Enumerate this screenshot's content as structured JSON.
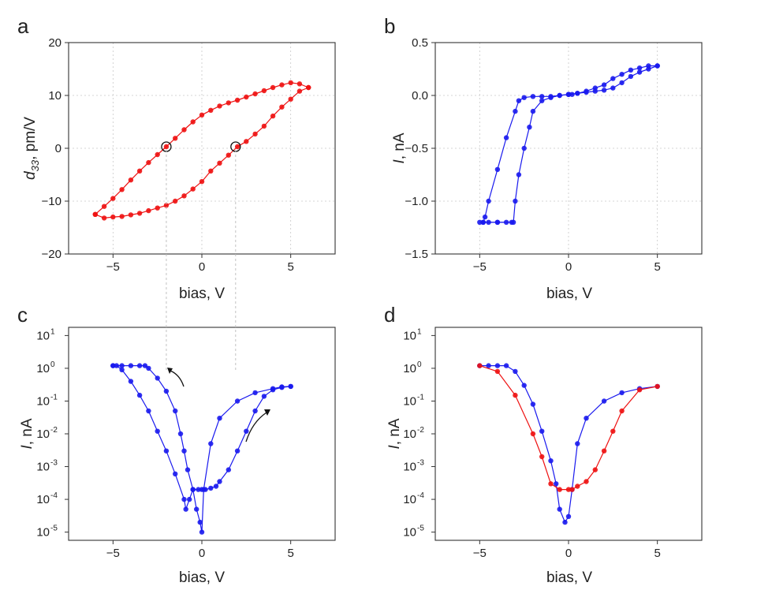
{
  "colors": {
    "red": "#ee1111",
    "blue": "#1a1aee",
    "frame": "#333333",
    "grid": "#c8c8c8",
    "dashed_guide": "#bbbbbb"
  },
  "chart_data": [
    {
      "panel": "a",
      "type": "line",
      "xlabel": "bias, V",
      "ylabel_main": "d",
      "ylabel_sub": "33",
      "ylabel_rest": ", pm/V",
      "xlim": [
        -7.5,
        7.5
      ],
      "ylim": [
        -20,
        20
      ],
      "xticks": [
        -5,
        0,
        5
      ],
      "yticks": [
        -20,
        -10,
        0,
        10,
        20
      ],
      "xtick_labels": [
        "−5",
        "0",
        "5"
      ],
      "ytick_labels": [
        "−20",
        "−10",
        "0",
        "10",
        "20"
      ],
      "grid": "dotted",
      "color": "#ee1111",
      "series": [
        {
          "x": [
            -6,
            -5.5,
            -5,
            -4.5,
            -4,
            -3.5,
            -3,
            -2.5,
            -2,
            -1.5,
            -1,
            -0.5,
            0,
            0.5,
            1,
            1.5,
            2,
            2.5,
            3,
            3.5,
            4,
            4.5,
            5,
            5.5,
            6
          ],
          "y": [
            -12.5,
            -11,
            -9.5,
            -7.8,
            -6,
            -4.3,
            -2.7,
            -1.2,
            0.3,
            1.9,
            3.5,
            5,
            6.3,
            7.2,
            8,
            8.6,
            9.1,
            9.7,
            10.3,
            10.9,
            11.5,
            12,
            12.4,
            12.2,
            11.5
          ]
        },
        {
          "x": [
            6,
            5.5,
            5,
            4.5,
            4,
            3.5,
            3,
            2.5,
            2,
            1.5,
            1,
            0.5,
            0,
            -0.5,
            -1,
            -1.5,
            -2,
            -2.5,
            -3,
            -3.5,
            -4,
            -4.5,
            -5,
            -5.5,
            -6
          ],
          "y": [
            11.5,
            10.8,
            9.3,
            7.8,
            6.1,
            4.2,
            2.7,
            1.3,
            0.3,
            -1.3,
            -2.8,
            -4.3,
            -6.3,
            -7.7,
            -9,
            -10,
            -10.8,
            -11.3,
            -11.8,
            -12.3,
            -12.6,
            -12.9,
            -13,
            -13.2,
            -12.5
          ]
        }
      ],
      "markers": [
        {
          "x": -2,
          "y": 0.3
        },
        {
          "x": 1.9,
          "y": 0.3
        }
      ]
    },
    {
      "panel": "b",
      "type": "line",
      "xlabel": "bias, V",
      "ylabel_main": "I",
      "ylabel_rest": ", nA",
      "xlim": [
        -7.5,
        7.5
      ],
      "ylim": [
        -1.5,
        0.5
      ],
      "xticks": [
        -5,
        0,
        5
      ],
      "yticks": [
        -1.5,
        -1.0,
        -0.5,
        0.0,
        0.5
      ],
      "xtick_labels": [
        "−5",
        "0",
        "5"
      ],
      "ytick_labels": [
        "−1.5",
        "−1.0",
        "−0.5",
        "0.0",
        "0.5"
      ],
      "grid": "dotted",
      "color": "#1a1aee",
      "series": [
        {
          "x": [
            0,
            0.5,
            1,
            1.5,
            2,
            2.5,
            3,
            3.5,
            4,
            4.5,
            5
          ],
          "y": [
            0.01,
            0.02,
            0.03,
            0.04,
            0.05,
            0.07,
            0.12,
            0.18,
            0.22,
            0.25,
            0.28
          ]
        },
        {
          "x": [
            5,
            4.5,
            4,
            3.5,
            3,
            2.5,
            2,
            1.5,
            1,
            0.5,
            0.2,
            0,
            -0.5,
            -1,
            -1.5,
            -2,
            -2.5,
            -2.8,
            -3,
            -3.5,
            -4,
            -4.5,
            -4.7,
            -4.8
          ],
          "y": [
            0.28,
            0.28,
            0.26,
            0.24,
            0.2,
            0.16,
            0.1,
            0.07,
            0.04,
            0.02,
            0.01,
            0.01,
            0.0,
            -0.01,
            -0.01,
            -0.01,
            -0.02,
            -0.05,
            -0.15,
            -0.4,
            -0.7,
            -1.0,
            -1.15,
            -1.2
          ]
        },
        {
          "x": [
            -4.8,
            -4.5,
            -4,
            -3.5,
            -3.2
          ],
          "y": [
            -1.2,
            -1.2,
            -1.2,
            -1.2,
            -1.2
          ]
        },
        {
          "x": [
            -5,
            -4,
            -3.1,
            -3,
            -2.8,
            -2.5,
            -2.2,
            -2,
            -1.5,
            -1,
            -0.5,
            0
          ],
          "y": [
            -1.2,
            -1.2,
            -1.2,
            -1.0,
            -0.75,
            -0.5,
            -0.3,
            -0.15,
            -0.05,
            -0.02,
            0.0,
            0.01
          ]
        }
      ]
    },
    {
      "panel": "c",
      "type": "line",
      "xlabel": "bias, V",
      "ylabel_main": "I",
      "ylabel_rest": ", nA",
      "yscale": "log",
      "xlim": [
        -7.5,
        7.5
      ],
      "ylim": [
        1e-05,
        10
      ],
      "xticks": [
        -5,
        0,
        5
      ],
      "xtick_labels": [
        "−5",
        "0",
        "5"
      ],
      "ytick_exponents": [
        -5,
        -4,
        -3,
        -2,
        -1,
        0,
        1
      ],
      "ytick_labels": [
        "10",
        "10",
        "10",
        "10",
        "10",
        "10",
        "10"
      ],
      "ytick_sups": [
        "-5",
        "-4",
        "-3",
        "-2",
        "-1",
        "0",
        "1"
      ],
      "grid": "none",
      "color": "#1a1aee",
      "series": [
        {
          "x": [
            -5,
            -4.5,
            -4,
            -3.5,
            -3.2,
            -3,
            -2.5,
            -2,
            -1.5,
            -1.2,
            -1,
            -0.8,
            -0.5,
            -0.3,
            -0.1,
            0,
            0.1,
            0.5,
            1,
            2,
            3,
            4,
            4.5,
            5
          ],
          "y": [
            1.2,
            1.2,
            1.2,
            1.2,
            1.2,
            1.0,
            0.5,
            0.2,
            0.05,
            0.01,
            0.003,
            0.0008,
            0.0002,
            5e-05,
            2e-05,
            1e-05,
            0.0002,
            0.005,
            0.03,
            0.1,
            0.18,
            0.24,
            0.27,
            0.28
          ]
        },
        {
          "x": [
            5,
            4.5,
            4,
            3.5,
            3,
            2.5,
            2,
            1.5,
            1,
            0.8,
            0.5,
            0.2,
            0,
            -0.2,
            -0.5,
            -0.7,
            -0.9,
            -1,
            -1.5,
            -2,
            -2.5,
            -3,
            -3.5,
            -4,
            -4.5,
            -4.8,
            -5
          ],
          "y": [
            0.28,
            0.26,
            0.22,
            0.14,
            0.05,
            0.012,
            0.003,
            0.0008,
            0.00035,
            0.00025,
            0.00022,
            0.0002,
            0.0002,
            0.0002,
            0.0002,
            0.0001,
            5e-05,
            0.0001,
            0.0006,
            0.003,
            0.012,
            0.05,
            0.15,
            0.4,
            0.9,
            1.2,
            1.2
          ]
        }
      ],
      "guide_lines_x": [
        -2,
        1.9
      ]
    },
    {
      "panel": "d",
      "type": "line",
      "xlabel": "bias, V",
      "ylabel_main": "I",
      "ylabel_rest": ", nA",
      "yscale": "log",
      "xlim": [
        -7.5,
        7.5
      ],
      "ylim": [
        1e-05,
        10
      ],
      "xticks": [
        -5,
        0,
        5
      ],
      "xtick_labels": [
        "−5",
        "0",
        "5"
      ],
      "ytick_exponents": [
        -5,
        -4,
        -3,
        -2,
        -1,
        0,
        1
      ],
      "ytick_labels": [
        "10",
        "10",
        "10",
        "10",
        "10",
        "10",
        "10"
      ],
      "ytick_sups": [
        "-5",
        "-4",
        "-3",
        "-2",
        "-1",
        "0",
        "1"
      ],
      "grid": "none",
      "colors": [
        "#1a1aee",
        "#ee1111"
      ],
      "series": [
        {
          "x": [
            -5,
            -4.5,
            -4,
            -3.5,
            -3,
            -2.5,
            -2,
            -1.5,
            -1,
            -0.7,
            -0.5,
            -0.2,
            0,
            0.2,
            0.5,
            1,
            2,
            3,
            4,
            5
          ],
          "y": [
            1.2,
            1.2,
            1.2,
            1.2,
            0.8,
            0.3,
            0.08,
            0.012,
            0.0015,
            0.0003,
            5e-05,
            2e-05,
            3e-05,
            0.0002,
            0.005,
            0.03,
            0.1,
            0.18,
            0.24,
            0.28
          ]
        },
        {
          "x": [
            5,
            4,
            3,
            2.5,
            2,
            1.5,
            1,
            0.5,
            0.2,
            0,
            -0.5,
            -1,
            -1.5,
            -2,
            -3,
            -4,
            -5
          ],
          "y": [
            0.28,
            0.22,
            0.05,
            0.012,
            0.003,
            0.0008,
            0.00035,
            0.00025,
            0.0002,
            0.0002,
            0.0002,
            0.0003,
            0.002,
            0.01,
            0.15,
            0.8,
            1.2
          ]
        }
      ]
    }
  ],
  "panels": {
    "a": {
      "letter": "a",
      "xlabel": "bias, V"
    },
    "b": {
      "letter": "b",
      "xlabel": "bias, V"
    },
    "c": {
      "letter": "c",
      "xlabel": "bias, V"
    },
    "d": {
      "letter": "d",
      "xlabel": "bias, V"
    }
  }
}
